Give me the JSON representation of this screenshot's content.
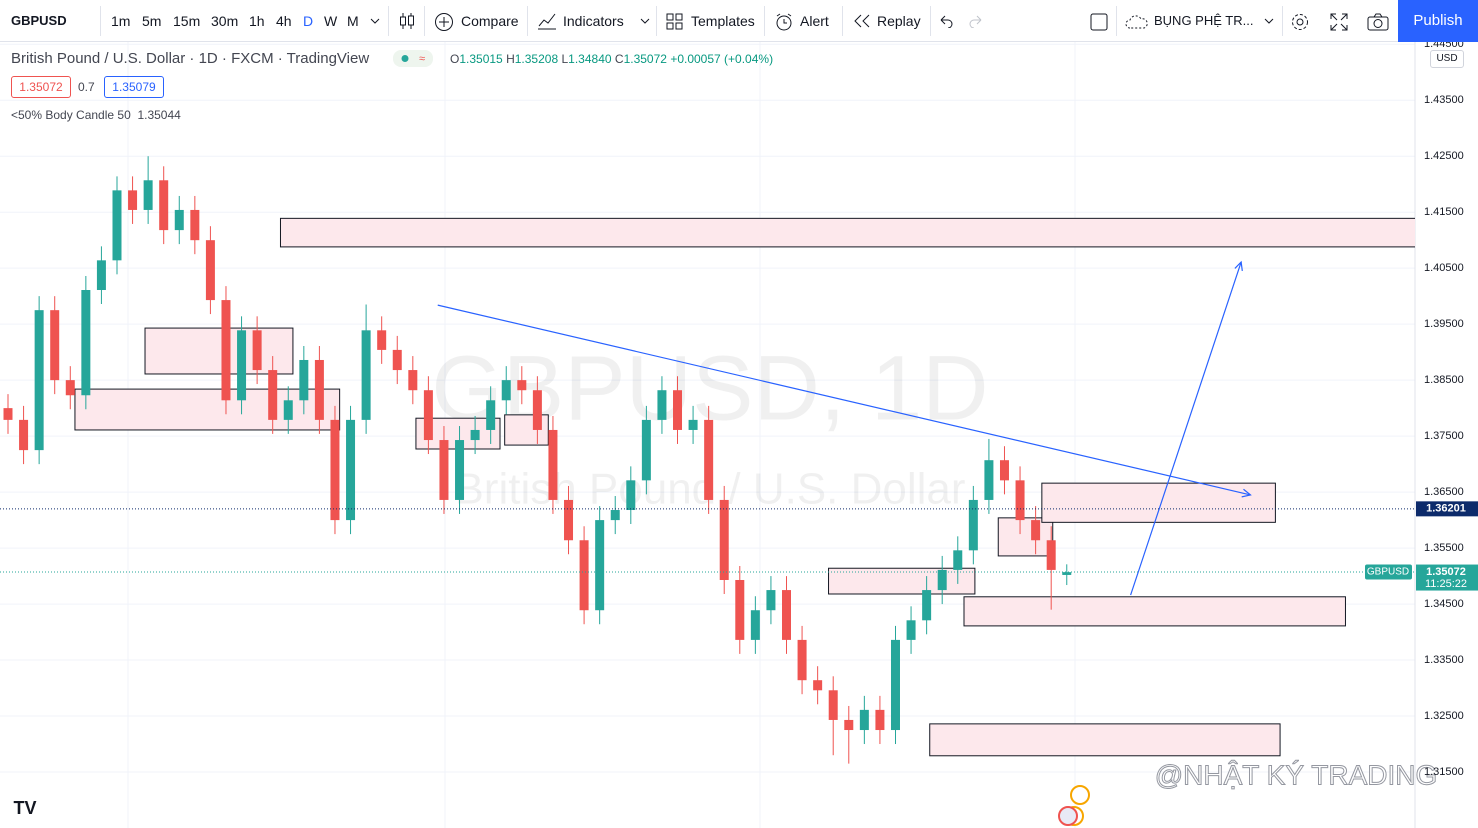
{
  "toolbar": {
    "symbol": "GBPUSD",
    "intervals": [
      "1m",
      "5m",
      "15m",
      "30m",
      "1h",
      "4h",
      "D",
      "W",
      "M"
    ],
    "compare": "Compare",
    "indicators": "Indicators",
    "templates": "Templates",
    "alert": "Alert",
    "replay": "Replay",
    "layout": "BỤNG PHỆ TR...",
    "publish": "Publish"
  },
  "legend": {
    "title": "British Pound / U.S. Dollar · 1D · FXCM · TradingView",
    "open_label": "O",
    "open": "1.35015",
    "high_label": "H",
    "high": "1.35208",
    "low_label": "L",
    "low": "1.34840",
    "close_label": "C",
    "close": "1.35072",
    "change": "+0.00057",
    "change_pct": "(+0.04%)",
    "bid": "1.35072",
    "spread": "0.7",
    "ask": "1.35079",
    "indicator": "<50% Body Candle 50",
    "indicator_value": "1.35044"
  },
  "chart_data": {
    "type": "candlestick",
    "currency": "USD",
    "watermark": "GBPUSD, 1D",
    "watermark_sub": "British Pound / U.S. Dollar",
    "credit": "@NHẬT KÝ TRADING",
    "colors": {
      "up": "#26a69a",
      "down": "#ef5350",
      "zone": "#fde8ec",
      "line": "#2962ff"
    },
    "open": [
      1.38,
      1.3779,
      1.3725,
      1.3975,
      1.385,
      1.3823,
      1.4011,
      1.4064,
      1.4189,
      1.4154,
      1.4207,
      1.4118,
      1.4154,
      1.41,
      1.3993,
      1.3814,
      1.3939,
      1.3868,
      1.3779,
      1.3814,
      1.3886,
      1.3779,
      1.36,
      1.3779,
      1.3939,
      1.3904,
      1.3868,
      1.3832,
      1.3743,
      1.3636,
      1.3743,
      1.3761,
      1.3814,
      1.385,
      1.3832,
      1.3761,
      1.3636,
      1.3564,
      1.3439,
      1.36,
      1.3618,
      1.3671,
      1.3779,
      1.3832,
      1.3761,
      1.3779,
      1.3636,
      1.3493,
      1.3386,
      1.3439,
      1.3475,
      1.3386,
      1.3314,
      1.3296,
      1.3243,
      1.3225,
      1.3261,
      1.3225,
      1.3386,
      1.3421,
      1.3475,
      1.3511,
      1.3546,
      1.3636,
      1.3707,
      1.3671,
      1.36,
      1.3564,
      1.3502
    ],
    "high": [
      1.3825,
      1.3804,
      1.4,
      1.4,
      1.3875,
      1.4036,
      1.4089,
      1.4214,
      1.4214,
      1.425,
      1.4232,
      1.4179,
      1.4179,
      1.4125,
      1.4018,
      1.3964,
      1.3964,
      1.3893,
      1.3839,
      1.3911,
      1.3911,
      1.3804,
      1.3804,
      1.3985,
      1.3964,
      1.3929,
      1.3893,
      1.3857,
      1.3768,
      1.3768,
      1.3786,
      1.3839,
      1.3875,
      1.3875,
      1.3857,
      1.3786,
      1.3661,
      1.3589,
      1.3625,
      1.3643,
      1.3696,
      1.3804,
      1.3857,
      1.3857,
      1.3804,
      1.3804,
      1.3661,
      1.3518,
      1.3464,
      1.35,
      1.35,
      1.3411,
      1.3339,
      1.3321,
      1.3268,
      1.3286,
      1.3286,
      1.3411,
      1.3446,
      1.35,
      1.3536,
      1.3571,
      1.3661,
      1.3745,
      1.3732,
      1.3696,
      1.3625,
      1.3589,
      1.3521
    ],
    "low": [
      1.3754,
      1.37,
      1.37,
      1.3825,
      1.3798,
      1.3798,
      1.3986,
      1.4039,
      1.4129,
      1.4129,
      1.4093,
      1.4093,
      1.4075,
      1.3968,
      1.3789,
      1.3789,
      1.3843,
      1.3754,
      1.3754,
      1.3789,
      1.3754,
      1.3575,
      1.3575,
      1.3754,
      1.3879,
      1.3843,
      1.3807,
      1.3718,
      1.3611,
      1.3611,
      1.3718,
      1.3736,
      1.3789,
      1.3807,
      1.3736,
      1.3611,
      1.3539,
      1.3414,
      1.3414,
      1.3575,
      1.3593,
      1.3646,
      1.3754,
      1.3736,
      1.3736,
      1.3611,
      1.3468,
      1.3361,
      1.3361,
      1.3414,
      1.3361,
      1.3289,
      1.3271,
      1.318,
      1.3165,
      1.32,
      1.32,
      1.32,
      1.3361,
      1.3396,
      1.345,
      1.3486,
      1.3521,
      1.3611,
      1.3646,
      1.3575,
      1.3539,
      1.344,
      1.3484
    ],
    "close": [
      1.3779,
      1.3725,
      1.3975,
      1.385,
      1.3823,
      1.4011,
      1.4064,
      1.4189,
      1.4154,
      1.4207,
      1.4118,
      1.4154,
      1.41,
      1.3993,
      1.3814,
      1.3939,
      1.3868,
      1.3779,
      1.3814,
      1.3886,
      1.3779,
      1.36,
      1.3779,
      1.3939,
      1.3904,
      1.3868,
      1.3832,
      1.3743,
      1.3636,
      1.3743,
      1.3761,
      1.3814,
      1.385,
      1.3832,
      1.3761,
      1.3636,
      1.3564,
      1.3439,
      1.36,
      1.3618,
      1.3671,
      1.3779,
      1.3832,
      1.3761,
      1.3779,
      1.3636,
      1.3493,
      1.3386,
      1.3439,
      1.3475,
      1.3386,
      1.3314,
      1.3296,
      1.3243,
      1.3225,
      1.3261,
      1.3225,
      1.3386,
      1.3421,
      1.3475,
      1.3511,
      1.3546,
      1.3636,
      1.3707,
      1.3671,
      1.36,
      1.3564,
      1.3511,
      1.3507
    ],
    "ylim": [
      1.305,
      1.4454
    ],
    "yticks": [
      {
        "value": 1.445,
        "label": "1.44500"
      },
      {
        "value": 1.435,
        "label": "1.43500"
      },
      {
        "value": 1.425,
        "label": "1.42500"
      },
      {
        "value": 1.415,
        "label": "1.41500"
      },
      {
        "value": 1.405,
        "label": "1.40500"
      },
      {
        "value": 1.395,
        "label": "1.39500"
      },
      {
        "value": 1.385,
        "label": "1.38500"
      },
      {
        "value": 1.375,
        "label": "1.37500"
      },
      {
        "value": 1.365,
        "label": "1.36500"
      },
      {
        "value": 1.355,
        "label": "1.35500"
      },
      {
        "value": 1.345,
        "label": "1.34500"
      },
      {
        "value": 1.335,
        "label": "1.33500"
      },
      {
        "value": 1.325,
        "label": "1.32500"
      },
      {
        "value": 1.315,
        "label": "1.31500"
      }
    ],
    "grid": true,
    "zones": [
      {
        "from": 17.5,
        "to": 90.4,
        "top": 1.4139,
        "bottom": 1.4088
      },
      {
        "from": 8.8,
        "to": 18.3,
        "top": 1.3943,
        "bottom": 1.3861
      },
      {
        "from": 4.3,
        "to": 21.3,
        "top": 1.3834,
        "bottom": 1.3761
      },
      {
        "from": 26.2,
        "to": 31.6,
        "top": 1.3782,
        "bottom": 1.3727
      },
      {
        "from": 31.9,
        "to": 34.7,
        "top": 1.3788,
        "bottom": 1.3734
      },
      {
        "from": 52.7,
        "to": 62.1,
        "top": 1.3514,
        "bottom": 1.3468
      },
      {
        "from": 61.4,
        "to": 85.9,
        "top": 1.3463,
        "bottom": 1.3411
      },
      {
        "from": 63.6,
        "to": 67.1,
        "top": 1.3604,
        "bottom": 1.3536
      },
      {
        "from": 66.4,
        "to": 81.4,
        "top": 1.3666,
        "bottom": 1.3596
      },
      {
        "from": 59.2,
        "to": 81.7,
        "top": 1.3236,
        "bottom": 1.3179
      }
    ],
    "lines": [
      {
        "x": [
          27.6,
          79.8
        ],
        "y": [
          1.3984,
          1.3645
        ]
      },
      {
        "x": [
          72.1,
          79.2
        ],
        "y": [
          1.3466,
          1.4061
        ]
      }
    ],
    "price_lines": [
      {
        "value": 1.36201,
        "label": "1.36201",
        "color": "#0d2b6b"
      },
      {
        "value": 1.35072,
        "label": "1.35072",
        "color": "#26a69a",
        "countdown": "11:25:22",
        "symbol": "GBPUSD"
      }
    ]
  }
}
